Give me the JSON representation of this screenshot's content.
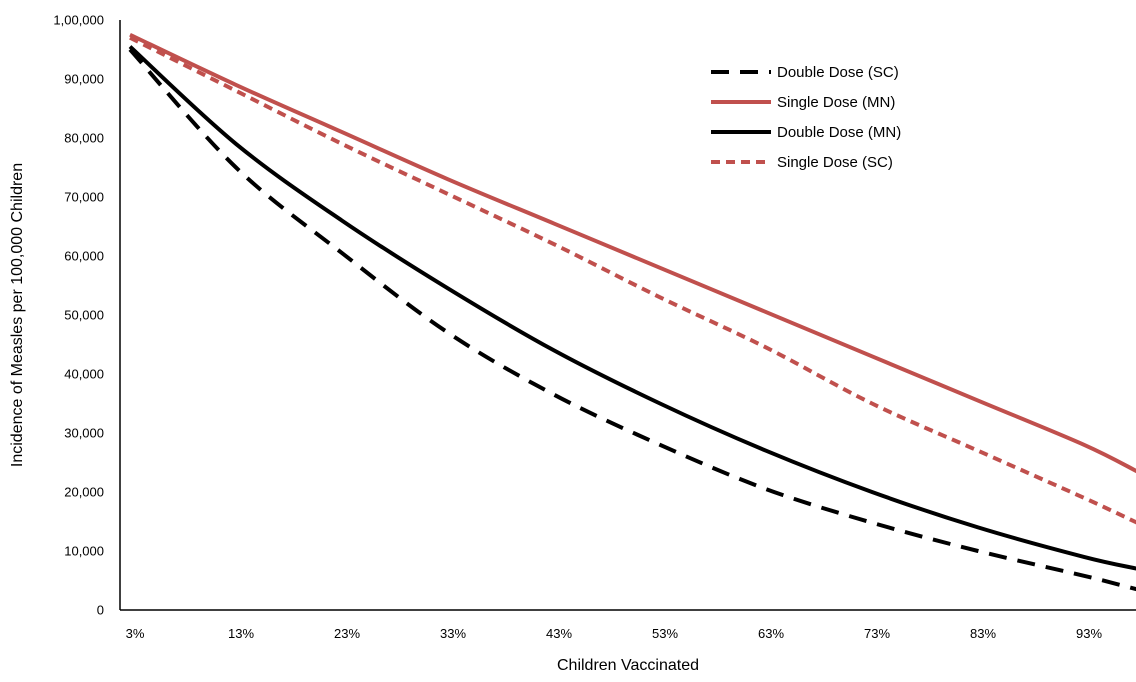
{
  "chart_data": {
    "type": "line",
    "xlabel": "Children Vaccinated",
    "ylabel": "Incidence of Measles per 100,000 Children",
    "x_tick_labels": [
      "3%",
      "13%",
      "23%",
      "33%",
      "43%",
      "53%",
      "63%",
      "73%",
      "83%",
      "93%"
    ],
    "y_tick_labels": [
      "0",
      "10,000",
      "20,000",
      "30,000",
      "40,000",
      "50,000",
      "60,000",
      "70,000",
      "80,000",
      "90,000",
      "1,00,000"
    ],
    "ylim": [
      0,
      100000
    ],
    "grid": false,
    "legend_position": "top-right",
    "x": [
      3,
      13,
      23,
      33,
      43,
      53,
      63,
      73,
      83,
      93,
      98
    ],
    "series": [
      {
        "name": "Double Dose (SC)",
        "color": "#000000",
        "dash": "dashed",
        "values": [
          95000,
          75000,
          60500,
          47000,
          36500,
          28000,
          20500,
          14800,
          10000,
          5800,
          3500
        ]
      },
      {
        "name": "Single Dose (MN)",
        "color": "#c0504d",
        "dash": "solid",
        "values": [
          97500,
          89000,
          81000,
          73000,
          65500,
          58000,
          50500,
          43000,
          35500,
          28000,
          23500
        ]
      },
      {
        "name": "Double Dose (MN)",
        "color": "#000000",
        "dash": "solid",
        "values": [
          95500,
          79000,
          66000,
          54500,
          44000,
          35000,
          27000,
          20000,
          14000,
          9000,
          7000
        ]
      },
      {
        "name": "Single Dose (SC)",
        "color": "#c0504d",
        "dash": "short-dash",
        "values": [
          97000,
          88000,
          79000,
          70500,
          62000,
          53000,
          44500,
          35000,
          27000,
          19000,
          14800
        ]
      }
    ]
  }
}
